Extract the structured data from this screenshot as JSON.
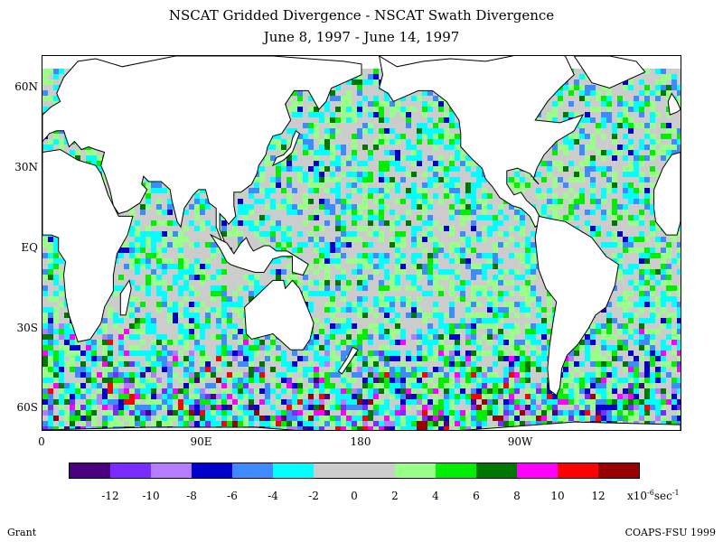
{
  "title": {
    "line1": "NSCAT Gridded Divergence - NSCAT Swath Divergence",
    "line2": "June 8, 1997 - June 14, 1997"
  },
  "map": {
    "projection": "cylindrical equidistant",
    "lon_range": [
      0,
      360
    ],
    "lat_range": [
      -68,
      72
    ],
    "land_color": "#ffffff",
    "coastline_color": "#000000",
    "lat_labels": [
      "60N",
      "30N",
      "EQ",
      "30S",
      "60S"
    ],
    "lat_values": [
      60,
      30,
      0,
      -30,
      -60
    ],
    "lon_labels": [
      "0",
      "90E",
      "180",
      "90W"
    ],
    "lon_values": [
      0,
      90,
      180,
      270
    ]
  },
  "colorbar": {
    "colors": [
      "#4b0082",
      "#7a2cff",
      "#b57cff",
      "#0000cd",
      "#3d8bff",
      "#00ffff",
      "#cccccc",
      "#cccccc",
      "#99ff88",
      "#00ee00",
      "#007700",
      "#ff00ff",
      "#ff0000",
      "#990000"
    ],
    "tick_labels": [
      "-12",
      "-10",
      "-8",
      "-6",
      "-4",
      "-2",
      "0",
      "2",
      "4",
      "6",
      "8",
      "10",
      "12"
    ],
    "unit_prefix": "x10",
    "unit_exp": "-6",
    "unit_mid": "sec",
    "unit_exp2": "-1"
  },
  "footer": {
    "left": "Grant",
    "right": "COAPS-FSU 1999"
  }
}
